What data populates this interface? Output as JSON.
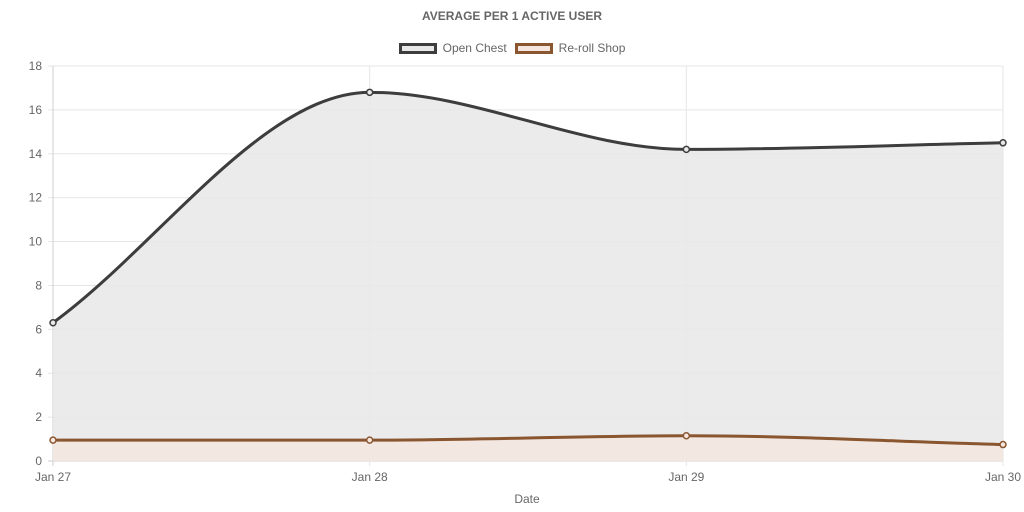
{
  "chart_data": {
    "type": "line",
    "title": "AVERAGE PER 1 ACTIVE USER",
    "xlabel": "Date",
    "ylabel": "",
    "categories": [
      "Jan 27",
      "Jan 28",
      "Jan 29",
      "Jan 30"
    ],
    "ylim": [
      0,
      18
    ],
    "yticks": [
      0,
      2,
      4,
      6,
      8,
      10,
      12,
      14,
      16,
      18
    ],
    "grid": true,
    "legend_position": "top-center",
    "series": [
      {
        "name": "Open Chest",
        "values": [
          6.3,
          16.8,
          14.2,
          14.5
        ],
        "color": "#3d3d3d",
        "fill": "#e8e8e8",
        "filled": true
      },
      {
        "name": "Re-roll Shop",
        "values": [
          0.95,
          0.95,
          1.15,
          0.75
        ],
        "color": "#8a5630",
        "fill": "#f5e6e0",
        "filled": true
      }
    ]
  }
}
